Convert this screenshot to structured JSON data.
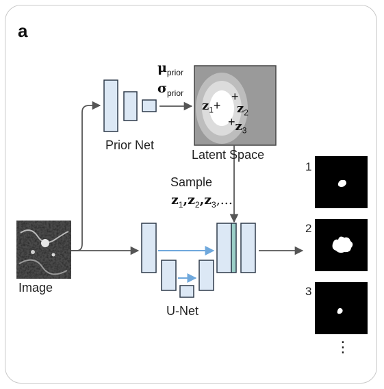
{
  "panel_letter": "a",
  "labels": {
    "prior_net": "Prior Net",
    "latent_space": "Latent Space",
    "image": "Image",
    "unet": "U-Net",
    "sample": "Sample",
    "sample_z": "z",
    "sample_z_subs": [
      "1",
      "2",
      "3"
    ],
    "sample_tail": ",..."
  },
  "latent": {
    "mu_symbol": "μ",
    "sigma_symbol": "σ",
    "prior_sub": "prior",
    "z_symbol": "z",
    "z_subs": [
      "1",
      "2",
      "3"
    ],
    "plus": "+"
  },
  "outputs": {
    "indices": [
      "1",
      "2",
      "3"
    ],
    "more": "⋮"
  },
  "colors": {
    "block_fill": "#dce8f5",
    "block_stroke": "#2e3a4a",
    "skip_arrow": "#6fa8dc",
    "arrow": "#555555",
    "latent_bg": "#9a9a9a"
  }
}
